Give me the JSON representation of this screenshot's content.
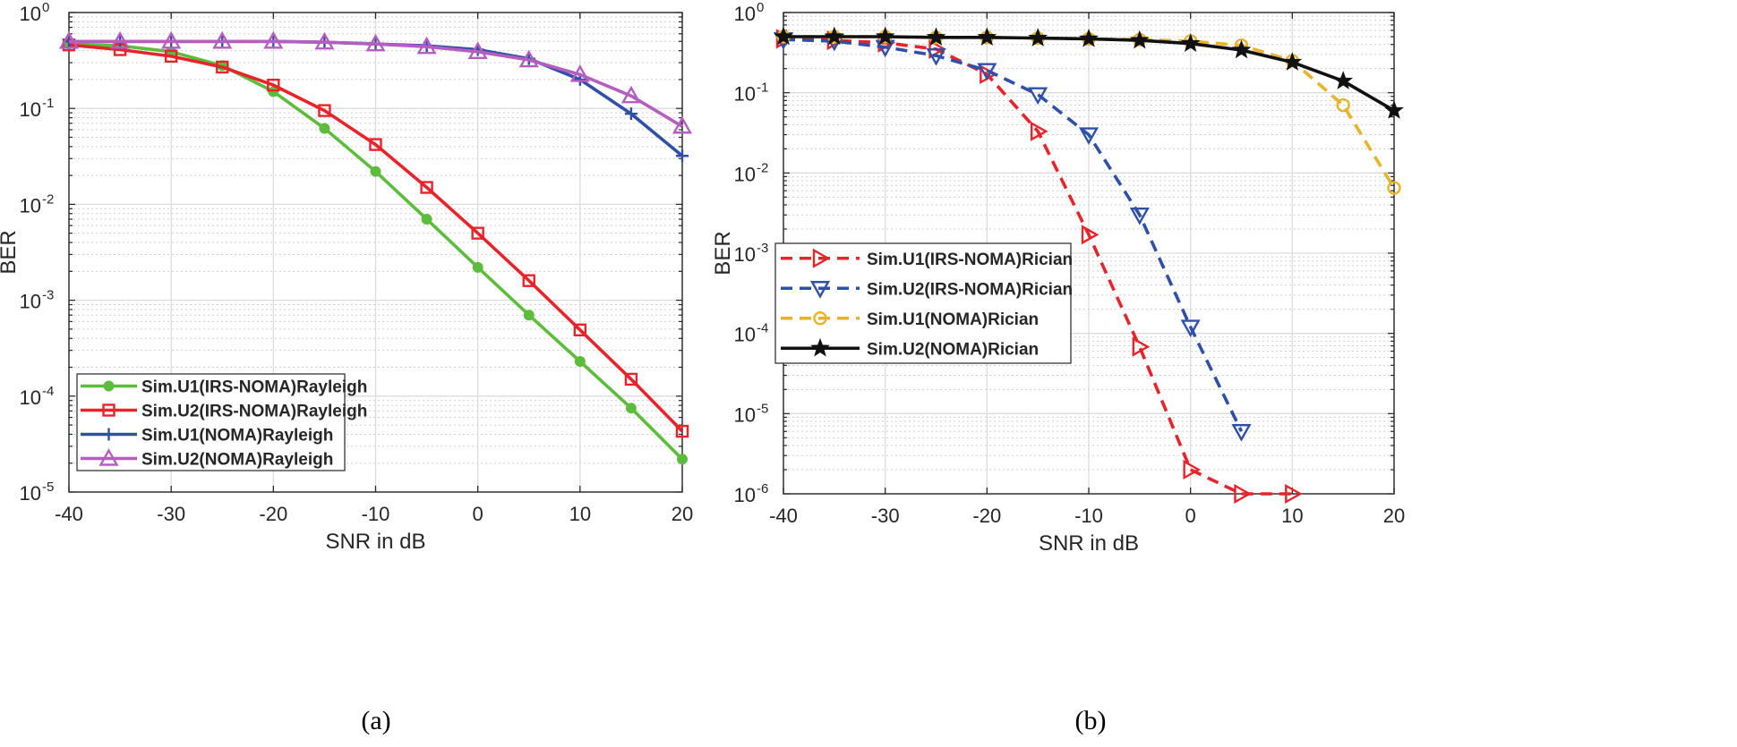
{
  "chart_data": [
    {
      "type": "line",
      "panel": "a",
      "caption": "(a)",
      "xlabel": "SNR in dB",
      "ylabel": "BER",
      "yscale": "log",
      "xlim": [
        -40,
        20
      ],
      "ylim": [
        1e-05,
        1
      ],
      "xticks": [
        -40,
        -30,
        -20,
        -10,
        0,
        10,
        20
      ],
      "xtick_labels": [
        "-40",
        "-30",
        "-20",
        "-10",
        "0",
        "10",
        "20"
      ],
      "yticks": [
        1e-05,
        0.0001,
        0.001,
        0.01,
        0.1,
        1
      ],
      "ytick_labels": [
        {
          "base": "10",
          "exp": "-5"
        },
        {
          "base": "10",
          "exp": "-4"
        },
        {
          "base": "10",
          "exp": "-3"
        },
        {
          "base": "10",
          "exp": "-2"
        },
        {
          "base": "10",
          "exp": "-1"
        },
        {
          "base": "10",
          "exp": "0"
        }
      ],
      "grid": true,
      "legend_position": "bottom-left",
      "x": [
        -40,
        -35,
        -30,
        -25,
        -20,
        -15,
        -10,
        -5,
        0,
        5,
        10,
        15,
        20
      ],
      "series": [
        {
          "name": "Sim.U1(IRS-NOMA)Rayleigh",
          "color": "#5cbd3c",
          "marker": "filled-circle",
          "dash": "solid",
          "values": [
            0.47,
            0.45,
            0.39,
            0.28,
            0.15,
            0.062,
            0.022,
            0.007,
            0.0022,
            0.0007,
            0.00023,
            7.5e-05,
            2.2e-05
          ]
        },
        {
          "name": "Sim.U2(IRS-NOMA)Rayleigh",
          "color": "#e8232a",
          "marker": "square",
          "dash": "solid",
          "values": [
            0.46,
            0.41,
            0.35,
            0.27,
            0.175,
            0.095,
            0.042,
            0.015,
            0.005,
            0.0016,
            0.00049,
            0.00015,
            4.3e-05
          ]
        },
        {
          "name": "Sim.U1(NOMA)Rayleigh",
          "color": "#3050a8",
          "marker": "plus",
          "dash": "solid",
          "values": [
            0.5,
            0.5,
            0.5,
            0.5,
            0.5,
            0.49,
            0.47,
            0.45,
            0.41,
            0.33,
            0.2,
            0.088,
            0.032
          ]
        },
        {
          "name": "Sim.U2(NOMA)Rayleigh",
          "color": "#b45ec0",
          "marker": "triangle-up",
          "dash": "solid",
          "values": [
            0.5,
            0.5,
            0.5,
            0.5,
            0.5,
            0.49,
            0.47,
            0.44,
            0.39,
            0.32,
            0.225,
            0.135,
            0.065
          ]
        }
      ]
    },
    {
      "type": "line",
      "panel": "b",
      "caption": "(b)",
      "xlabel": "SNR in dB",
      "ylabel": "BER",
      "yscale": "log",
      "xlim": [
        -40,
        20
      ],
      "ylim": [
        1e-06,
        1
      ],
      "xticks": [
        -40,
        -30,
        -20,
        -10,
        0,
        10,
        20
      ],
      "xtick_labels": [
        "-40",
        "-30",
        "-20",
        "-10",
        "0",
        "10",
        "20"
      ],
      "yticks": [
        1e-06,
        1e-05,
        0.0001,
        0.001,
        0.01,
        0.1,
        1
      ],
      "ytick_labels": [
        {
          "base": "10",
          "exp": "-6"
        },
        {
          "base": "10",
          "exp": "-5"
        },
        {
          "base": "10",
          "exp": "-4"
        },
        {
          "base": "10",
          "exp": "-3"
        },
        {
          "base": "10",
          "exp": "-2"
        },
        {
          "base": "10",
          "exp": "-1"
        },
        {
          "base": "10",
          "exp": "0"
        }
      ],
      "grid": true,
      "legend_position": "middle-left",
      "x": [
        -40,
        -35,
        -30,
        -25,
        -20,
        -15,
        -10,
        -5,
        0,
        5,
        10,
        15,
        20
      ],
      "series": [
        {
          "name": "Sim.U1(IRS-NOMA)Rician",
          "color": "#e8232a",
          "marker": "triangle-right",
          "dash": "dashed",
          "x": [
            -40,
            -35,
            -30,
            -25,
            -20,
            -15,
            -10,
            -5,
            0,
            5,
            10
          ],
          "values": [
            0.47,
            0.45,
            0.42,
            0.35,
            0.17,
            0.033,
            0.0017,
            6.8e-05,
            2e-06,
            1e-06,
            1e-06
          ]
        },
        {
          "name": "Sim.U2(IRS-NOMA)Rician",
          "color": "#3050a8",
          "marker": "triangle-down",
          "dash": "dashed",
          "x": [
            -40,
            -35,
            -30,
            -25,
            -20,
            -15,
            -10,
            -5,
            0,
            5
          ],
          "values": [
            0.46,
            0.44,
            0.37,
            0.29,
            0.19,
            0.095,
            0.03,
            0.003,
            0.00012,
            6e-06
          ]
        },
        {
          "name": "Sim.U1(NOMA)Rician",
          "color": "#e8b32a",
          "marker": "circle",
          "dash": "dashed",
          "values": [
            0.5,
            0.5,
            0.5,
            0.49,
            0.49,
            0.48,
            0.47,
            0.46,
            0.44,
            0.39,
            0.25,
            0.07,
            0.0065
          ]
        },
        {
          "name": "Sim.U2(NOMA)Rician",
          "color": "#111111",
          "marker": "star",
          "dash": "solid",
          "values": [
            0.5,
            0.5,
            0.5,
            0.49,
            0.49,
            0.48,
            0.47,
            0.45,
            0.41,
            0.34,
            0.24,
            0.14,
            0.06
          ]
        }
      ]
    }
  ]
}
